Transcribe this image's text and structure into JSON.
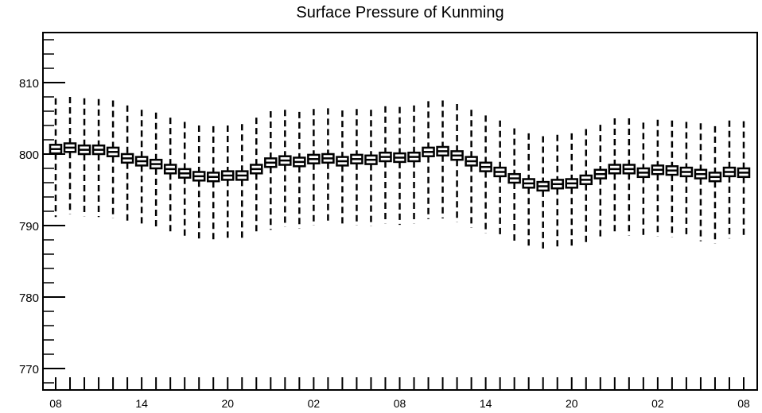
{
  "chart_data": {
    "type": "box",
    "title": "Surface Pressure of Kunming",
    "xlabel": "",
    "ylabel": "",
    "ylim": [
      767,
      817
    ],
    "yticks": [
      770,
      780,
      790,
      800,
      810
    ],
    "xtick_labels": [
      "08",
      "14",
      "20",
      "02",
      "08",
      "14",
      "20",
      "02",
      "08"
    ],
    "xtick_positions": [
      0,
      6,
      12,
      18,
      24,
      30,
      36,
      42,
      48
    ],
    "x_count": 49,
    "grid": false,
    "series": [
      {
        "median": [
          800.7,
          800.9,
          800.6,
          800.6,
          800.3,
          799.4,
          799.0,
          798.6,
          797.9,
          797.3,
          796.9,
          796.8,
          797.0,
          797.0,
          797.9,
          798.8,
          799.1,
          798.9,
          799.3,
          799.4,
          799.0,
          799.3,
          799.2,
          799.6,
          799.5,
          799.6,
          800.3,
          800.4,
          799.8,
          799.0,
          798.2,
          797.5,
          796.6,
          795.9,
          795.5,
          795.8,
          795.9,
          796.4,
          797.2,
          797.9,
          797.9,
          797.4,
          797.8,
          797.7,
          797.5,
          797.2,
          796.8,
          797.5,
          797.4
        ],
        "q1": [
          800.1,
          800.3,
          800.0,
          800.0,
          799.7,
          798.8,
          798.4,
          798.0,
          797.3,
          796.7,
          796.3,
          796.2,
          796.4,
          796.4,
          797.3,
          798.2,
          798.5,
          798.3,
          798.7,
          798.8,
          798.4,
          798.7,
          798.6,
          799.0,
          798.9,
          799.0,
          799.7,
          799.8,
          799.2,
          798.4,
          797.6,
          796.9,
          796.0,
          795.3,
          794.9,
          795.2,
          795.3,
          795.8,
          796.6,
          797.3,
          797.3,
          796.8,
          797.2,
          797.1,
          796.9,
          796.6,
          796.2,
          796.9,
          796.8
        ],
        "q3": [
          801.3,
          801.5,
          801.2,
          801.2,
          800.9,
          800.0,
          799.6,
          799.2,
          798.5,
          797.9,
          797.5,
          797.4,
          797.6,
          797.6,
          798.5,
          799.4,
          799.7,
          799.5,
          799.9,
          800.0,
          799.6,
          799.9,
          799.8,
          800.2,
          800.1,
          800.2,
          800.9,
          801.0,
          800.4,
          799.6,
          798.8,
          798.1,
          797.2,
          796.5,
          796.1,
          796.4,
          796.5,
          797.0,
          797.8,
          798.5,
          798.5,
          798.0,
          798.4,
          798.3,
          798.1,
          797.8,
          797.4,
          798.1,
          798.0
        ],
        "whisker_low": [
          791.2,
          791.6,
          791.3,
          791.2,
          791.0,
          790.3,
          790.0,
          789.6,
          789.0,
          788.4,
          788.0,
          788.0,
          788.1,
          788.1,
          789.0,
          789.4,
          789.8,
          789.6,
          790.0,
          790.3,
          790.1,
          790.0,
          789.9,
          790.3,
          790.1,
          790.3,
          790.9,
          791.0,
          790.5,
          789.7,
          788.9,
          788.3,
          787.5,
          786.8,
          786.6,
          786.9,
          787.0,
          787.4,
          788.2,
          788.8,
          788.6,
          788.2,
          788.5,
          788.4,
          788.3,
          787.8,
          787.5,
          788.2,
          788.2
        ],
        "whisker_high": [
          807.8,
          808.0,
          807.8,
          807.7,
          807.5,
          806.8,
          806.2,
          805.8,
          805.1,
          804.5,
          804.0,
          803.9,
          804.0,
          804.2,
          805.1,
          806.0,
          806.2,
          805.9,
          806.3,
          806.4,
          806.1,
          806.3,
          806.2,
          806.7,
          806.6,
          806.8,
          807.4,
          807.5,
          807.0,
          806.2,
          805.4,
          804.7,
          803.6,
          802.9,
          802.5,
          802.7,
          802.9,
          803.5,
          804.1,
          805.0,
          805.0,
          804.4,
          804.8,
          804.7,
          804.5,
          804.3,
          803.9,
          804.7,
          804.6
        ]
      }
    ]
  }
}
